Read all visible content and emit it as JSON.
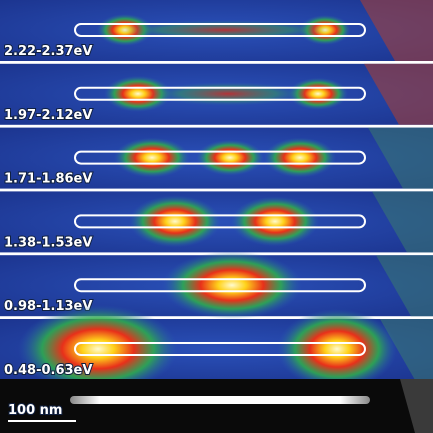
{
  "panels": [
    {
      "label": "2.22-2.37eV"
    },
    {
      "label": "1.97-2.12eV"
    },
    {
      "label": "1.71-1.86eV"
    },
    {
      "label": "1.38-1.53eV"
    },
    {
      "label": "0.98-1.13eV"
    },
    {
      "label": "0.48-0.63eV"
    }
  ],
  "scale_bar": {
    "label": "100 nm"
  }
}
